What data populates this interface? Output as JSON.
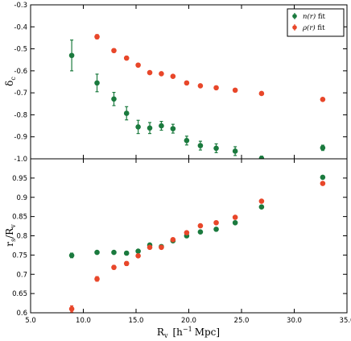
{
  "chart_data": [
    {
      "panel": "top",
      "type": "scatter",
      "title": "",
      "xlabel": "",
      "ylabel": "δ_c",
      "ylabel_main": "δ",
      "ylabel_sub": "c",
      "xlim": [
        5.0,
        35.0
      ],
      "ylim": [
        -1.0,
        -0.3
      ],
      "y_ticks": [
        -1.0,
        -0.9,
        -0.8,
        -0.7,
        -0.6,
        -0.5,
        -0.4,
        -0.3
      ],
      "y_tick_labels": [
        "-1.0",
        "-0.9",
        "-0.8",
        "-0.7",
        "-0.6",
        "-0.5",
        "-0.4",
        "-0.3"
      ],
      "legend": {
        "position": "top-right",
        "entries": [
          {
            "series": "n_fit",
            "label_main": "n(r)",
            "label_rest": " fit"
          },
          {
            "series": "rho_fit",
            "label_main": "ρ(r)",
            "label_rest": " fit"
          }
        ]
      },
      "series": [
        {
          "key": "n_fit",
          "name": "n(r) fit",
          "color": "#1b7a3e",
          "points": [
            {
              "x": 8.9,
              "y": -0.53,
              "err": 0.07
            },
            {
              "x": 11.3,
              "y": -0.655,
              "err": 0.04
            },
            {
              "x": 12.9,
              "y": -0.728,
              "err": 0.03
            },
            {
              "x": 14.1,
              "y": -0.793,
              "err": 0.03
            },
            {
              "x": 15.2,
              "y": -0.855,
              "err": 0.03
            },
            {
              "x": 16.3,
              "y": -0.86,
              "err": 0.025
            },
            {
              "x": 17.4,
              "y": -0.85,
              "err": 0.02
            },
            {
              "x": 18.5,
              "y": -0.863,
              "err": 0.02
            },
            {
              "x": 19.8,
              "y": -0.917,
              "err": 0.02
            },
            {
              "x": 21.1,
              "y": -0.94,
              "err": 0.02
            },
            {
              "x": 22.6,
              "y": -0.952,
              "err": 0.02
            },
            {
              "x": 24.4,
              "y": -0.965,
              "err": 0.02
            },
            {
              "x": 26.9,
              "y": -0.998,
              "err": 0.01
            },
            {
              "x": 32.7,
              "y": -0.95,
              "err": 0.012
            }
          ]
        },
        {
          "key": "rho_fit",
          "name": "ρ(r) fit",
          "color": "#e8472a",
          "points": [
            {
              "x": 11.3,
              "y": -0.445,
              "err": 0.01
            },
            {
              "x": 12.9,
              "y": -0.508,
              "err": 0.008
            },
            {
              "x": 14.1,
              "y": -0.542,
              "err": 0.008
            },
            {
              "x": 15.2,
              "y": -0.574,
              "err": 0.007
            },
            {
              "x": 16.3,
              "y": -0.608,
              "err": 0.006
            },
            {
              "x": 17.4,
              "y": -0.613,
              "err": 0.006
            },
            {
              "x": 18.5,
              "y": -0.625,
              "err": 0.006
            },
            {
              "x": 19.8,
              "y": -0.655,
              "err": 0.005
            },
            {
              "x": 21.1,
              "y": -0.668,
              "err": 0.005
            },
            {
              "x": 22.6,
              "y": -0.677,
              "err": 0.005
            },
            {
              "x": 24.4,
              "y": -0.688,
              "err": 0.005
            },
            {
              "x": 26.9,
              "y": -0.703,
              "err": 0.005
            },
            {
              "x": 32.7,
              "y": -0.73,
              "err": 0.004
            }
          ]
        }
      ]
    },
    {
      "panel": "bottom",
      "type": "scatter",
      "title": "",
      "xlabel": "R_v [h^-1 Mpc]",
      "ylabel": "r_s / R_v",
      "xlim": [
        5.0,
        35.0
      ],
      "ylim": [
        0.6,
        1.0
      ],
      "x_ticks": [
        5.0,
        10.0,
        15.0,
        20.0,
        25.0,
        30.0,
        35.0
      ],
      "x_tick_labels": [
        "5.0",
        "10.0",
        "15.0",
        "20.0",
        "25.0",
        "30.0",
        "35.0"
      ],
      "y_ticks": [
        0.6,
        0.65,
        0.7,
        0.75,
        0.8,
        0.85,
        0.9,
        0.95
      ],
      "y_tick_labels": [
        "0.6",
        "0.65",
        "0.7",
        "0.75",
        "0.8",
        "0.85",
        "0.9",
        "0.95"
      ],
      "series": [
        {
          "key": "n_fit",
          "color": "#1b7a3e",
          "points": [
            {
              "x": 8.9,
              "y": 0.749,
              "err": 0.006
            },
            {
              "x": 11.3,
              "y": 0.757,
              "err": 0.004
            },
            {
              "x": 12.9,
              "y": 0.757,
              "err": 0.003
            },
            {
              "x": 14.1,
              "y": 0.755,
              "err": 0.003
            },
            {
              "x": 15.2,
              "y": 0.76,
              "err": 0.003
            },
            {
              "x": 16.3,
              "y": 0.776,
              "err": 0.003
            },
            {
              "x": 17.4,
              "y": 0.772,
              "err": 0.003
            },
            {
              "x": 18.5,
              "y": 0.787,
              "err": 0.003
            },
            {
              "x": 19.8,
              "y": 0.8,
              "err": 0.003
            },
            {
              "x": 21.1,
              "y": 0.81,
              "err": 0.003
            },
            {
              "x": 22.6,
              "y": 0.817,
              "err": 0.003
            },
            {
              "x": 24.4,
              "y": 0.834,
              "err": 0.003
            },
            {
              "x": 26.9,
              "y": 0.875,
              "err": 0.003
            },
            {
              "x": 32.7,
              "y": 0.952,
              "err": 0.003
            }
          ]
        },
        {
          "key": "rho_fit",
          "color": "#e8472a",
          "points": [
            {
              "x": 8.9,
              "y": 0.61,
              "err": 0.008
            },
            {
              "x": 11.3,
              "y": 0.688,
              "err": 0.006
            },
            {
              "x": 12.9,
              "y": 0.718,
              "err": 0.005
            },
            {
              "x": 14.1,
              "y": 0.728,
              "err": 0.005
            },
            {
              "x": 15.2,
              "y": 0.748,
              "err": 0.004
            },
            {
              "x": 16.3,
              "y": 0.77,
              "err": 0.004
            },
            {
              "x": 17.4,
              "y": 0.77,
              "err": 0.004
            },
            {
              "x": 18.5,
              "y": 0.79,
              "err": 0.004
            },
            {
              "x": 19.8,
              "y": 0.808,
              "err": 0.004
            },
            {
              "x": 21.1,
              "y": 0.826,
              "err": 0.004
            },
            {
              "x": 22.6,
              "y": 0.834,
              "err": 0.004
            },
            {
              "x": 24.4,
              "y": 0.848,
              "err": 0.004
            },
            {
              "x": 26.9,
              "y": 0.89,
              "err": 0.004
            },
            {
              "x": 32.7,
              "y": 0.936,
              "err": 0.004
            }
          ]
        }
      ]
    }
  ],
  "labels": {
    "xlabel_main": "R",
    "xlabel_sub": "v",
    "xlabel_bracket_open": "[",
    "xlabel_h": "h",
    "xlabel_exp": "−1",
    "xlabel_unit": "Mpc]",
    "ylabel_bottom_r": "r",
    "ylabel_bottom_rsub": "s",
    "ylabel_bottom_slash": "/",
    "ylabel_bottom_R": "R",
    "ylabel_bottom_Rsub": "v"
  }
}
